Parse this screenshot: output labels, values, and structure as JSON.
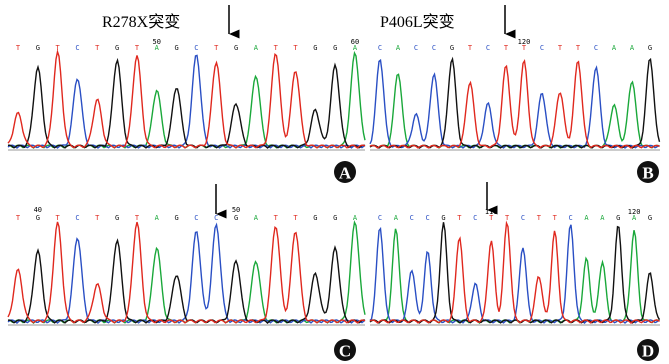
{
  "panels": [
    {
      "label": "A",
      "title": "R278X突变",
      "bases": [
        "T",
        "G",
        "T",
        "C",
        "T",
        "G",
        "T",
        "A",
        "G",
        "C",
        "T",
        "G",
        "A",
        "T",
        "T",
        "G",
        "G",
        "A"
      ],
      "numbers": [
        null,
        null,
        null,
        null,
        null,
        null,
        null,
        50,
        null,
        null,
        null,
        null,
        null,
        null,
        null,
        null,
        null,
        60
      ]
    },
    {
      "label": "B",
      "title": "P406L突变",
      "bases": [
        "C",
        "A",
        "C",
        "C",
        "G",
        "T",
        "C",
        "T",
        "T",
        "C",
        "T",
        "T",
        "C",
        "A",
        "A",
        "G"
      ],
      "numbers": [
        null,
        null,
        null,
        null,
        null,
        null,
        null,
        null,
        120,
        null,
        null,
        null,
        null,
        null,
        null,
        null
      ]
    },
    {
      "label": "C",
      "bases": [
        "T",
        "G",
        "T",
        "C",
        "T",
        "G",
        "T",
        "A",
        "G",
        "C",
        "C",
        "G",
        "A",
        "T",
        "T",
        "G",
        "G",
        "A"
      ],
      "numbers": [
        null,
        40,
        null,
        null,
        null,
        null,
        null,
        null,
        null,
        null,
        null,
        50,
        null,
        null,
        null,
        null,
        null,
        null
      ]
    },
    {
      "label": "D",
      "bases": [
        "C",
        "A",
        "C",
        "C",
        "G",
        "T",
        "C",
        "T",
        "T",
        "C",
        "T",
        "T",
        "C",
        "A",
        "A",
        "G",
        "A",
        "G"
      ],
      "numbers": [
        null,
        null,
        null,
        null,
        null,
        null,
        null,
        110,
        null,
        null,
        null,
        null,
        null,
        null,
        null,
        null,
        120,
        null
      ]
    }
  ]
}
